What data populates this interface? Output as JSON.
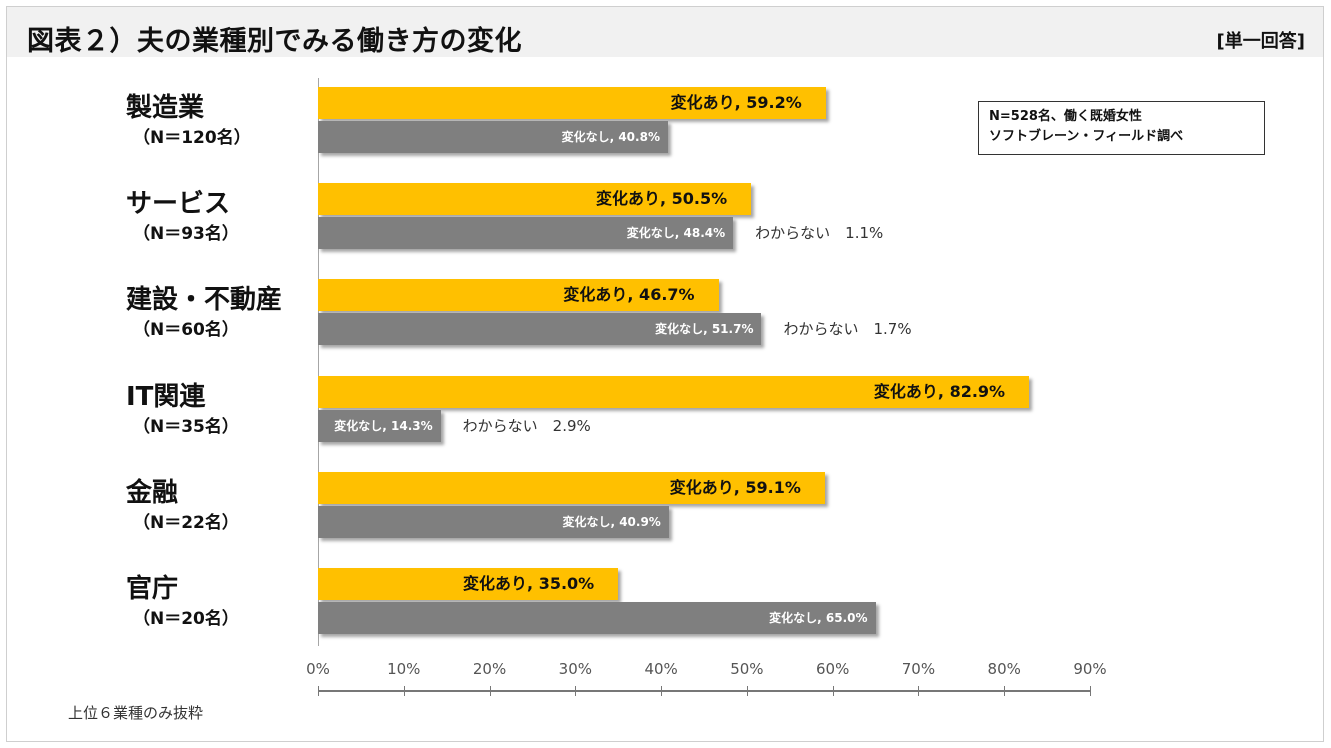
{
  "header": {
    "title": "図表２）夫の業種別でみる働き方の変化",
    "answer_type": "[単一回答]"
  },
  "note": {
    "line1": "N=528名、働く既婚女性",
    "line2": "ソフトブレーン・フィールド調べ"
  },
  "footnote": "上位６業種のみ抜粋",
  "colors": {
    "changed": "#ffc000",
    "unchanged": "#7f7f7f"
  },
  "chart_data": {
    "type": "bar",
    "orientation": "horizontal",
    "xlim": [
      0,
      90
    ],
    "x_ticks": [
      "0%",
      "10%",
      "20%",
      "30%",
      "40%",
      "50%",
      "60%",
      "70%",
      "80%",
      "90%"
    ],
    "categories": [
      {
        "label": "製造業",
        "n": "（N＝120名）",
        "changed": 59.2,
        "unchanged": 40.8,
        "unknown": null,
        "changed_label": "変化あり, 59.2%",
        "unchanged_label": "変化なし, 40.8%",
        "unknown_label": ""
      },
      {
        "label": "サービス",
        "n": "（N＝93名）",
        "changed": 50.5,
        "unchanged": 48.4,
        "unknown": 1.1,
        "changed_label": "変化あり, 50.5%",
        "unchanged_label": "変化なし, 48.4%",
        "unknown_label": "わからない　1.1%"
      },
      {
        "label": "建設・不動産",
        "n": "（N＝60名）",
        "changed": 46.7,
        "unchanged": 51.7,
        "unknown": 1.7,
        "changed_label": "変化あり, 46.7%",
        "unchanged_label": "変化なし, 51.7%",
        "unknown_label": "わからない　1.7%"
      },
      {
        "label": "IT関連",
        "n": "（N＝35名）",
        "changed": 82.9,
        "unchanged": 14.3,
        "unknown": 2.9,
        "changed_label": "変化あり, 82.9%",
        "unchanged_label": "変化なし, 14.3%",
        "unknown_label": "わからない　2.9%"
      },
      {
        "label": "金融",
        "n": "（N＝22名）",
        "changed": 59.1,
        "unchanged": 40.9,
        "unknown": null,
        "changed_label": "変化あり, 59.1%",
        "unchanged_label": "変化なし, 40.9%",
        "unknown_label": ""
      },
      {
        "label": "官庁",
        "n": "（N＝20名）",
        "changed": 35.0,
        "unchanged": 65.0,
        "unknown": null,
        "changed_label": "変化あり, 35.0%",
        "unchanged_label": "変化なし, 65.0%",
        "unknown_label": ""
      }
    ]
  }
}
